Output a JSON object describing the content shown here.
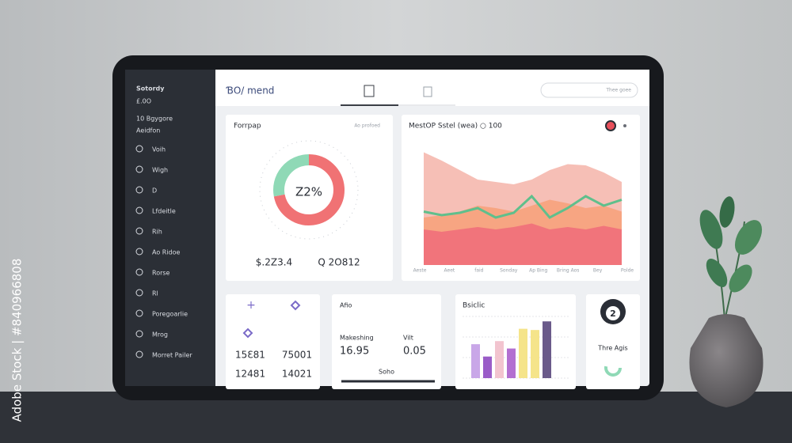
{
  "watermark": {
    "side": "Adobe Stock | #840966808"
  },
  "sidebar": {
    "title": "Sotordy",
    "subtitle": "£.0O",
    "section": "10 Bgygore",
    "label": "Aeidfon",
    "items": [
      "Voih",
      "Wigh",
      "D",
      "Lfdeitle",
      "Rih",
      "Ao Ridoe",
      "Rorse",
      "Rl",
      "Poregoarlie",
      "Mrog",
      "Morret Pailer"
    ]
  },
  "header": {
    "logo": "ƁO/ mend",
    "search": "Thee goee"
  },
  "donut_card": {
    "title": "Forrpap",
    "note": "Ao profoed",
    "center": "Z2%",
    "segments": [
      {
        "color": "#f07274",
        "value": 72
      },
      {
        "color": "#8fd9b6",
        "value": 28
      }
    ],
    "stats": [
      "$.2Z3.4",
      "Q 2O812"
    ]
  },
  "area_card": {
    "title": "MestOP Sstel (wea) ○ 100",
    "ylim": [
      0,
      100
    ],
    "x_labels": [
      "Aeste",
      "Aeet",
      "faid",
      "Sonday",
      "Ap Bing",
      "Bring Aos",
      "Bey",
      "Polde"
    ],
    "series": [
      {
        "color": "#f5b8ae",
        "values": [
          95,
          88,
          80,
          72,
          70,
          68,
          72,
          80,
          85,
          84,
          78,
          70
        ]
      },
      {
        "color": "#f7a27c",
        "values": [
          40,
          42,
          45,
          50,
          48,
          45,
          50,
          55,
          52,
          48,
          50,
          45
        ]
      },
      {
        "color": "#ef6f7a",
        "values": [
          30,
          28,
          30,
          32,
          30,
          32,
          35,
          30,
          32,
          30,
          33,
          30
        ]
      }
    ],
    "line": {
      "color": "#5fbf8c",
      "values": [
        45,
        42,
        44,
        48,
        40,
        44,
        58,
        40,
        48,
        58,
        50,
        55
      ]
    }
  },
  "stats_card": {
    "values": [
      "15Ɛ81",
      "75001",
      "12481",
      "14021"
    ]
  },
  "market_card": {
    "title": "Afio",
    "label_a": "Makeshing",
    "label_b": "Vilt",
    "value_a": "16.95",
    "value_b": "0.05",
    "footer": "Soho"
  },
  "bar_card": {
    "title": "Bsiclic",
    "ylim": [
      0,
      100
    ],
    "bars": [
      {
        "color": "#c9a7e8",
        "value": 55
      },
      {
        "color": "#9a5cc8",
        "value": 35
      },
      {
        "color": "#f2c4cf",
        "value": 60
      },
      {
        "color": "#b36fd1",
        "value": 48
      },
      {
        "color": "#f5e48a",
        "value": 80
      },
      {
        "color": "#f5e48a",
        "value": 78
      },
      {
        "color": "#6a5a8a",
        "value": 92
      }
    ]
  },
  "circle_card": {
    "badge": "2",
    "label": "Thre Agis"
  }
}
